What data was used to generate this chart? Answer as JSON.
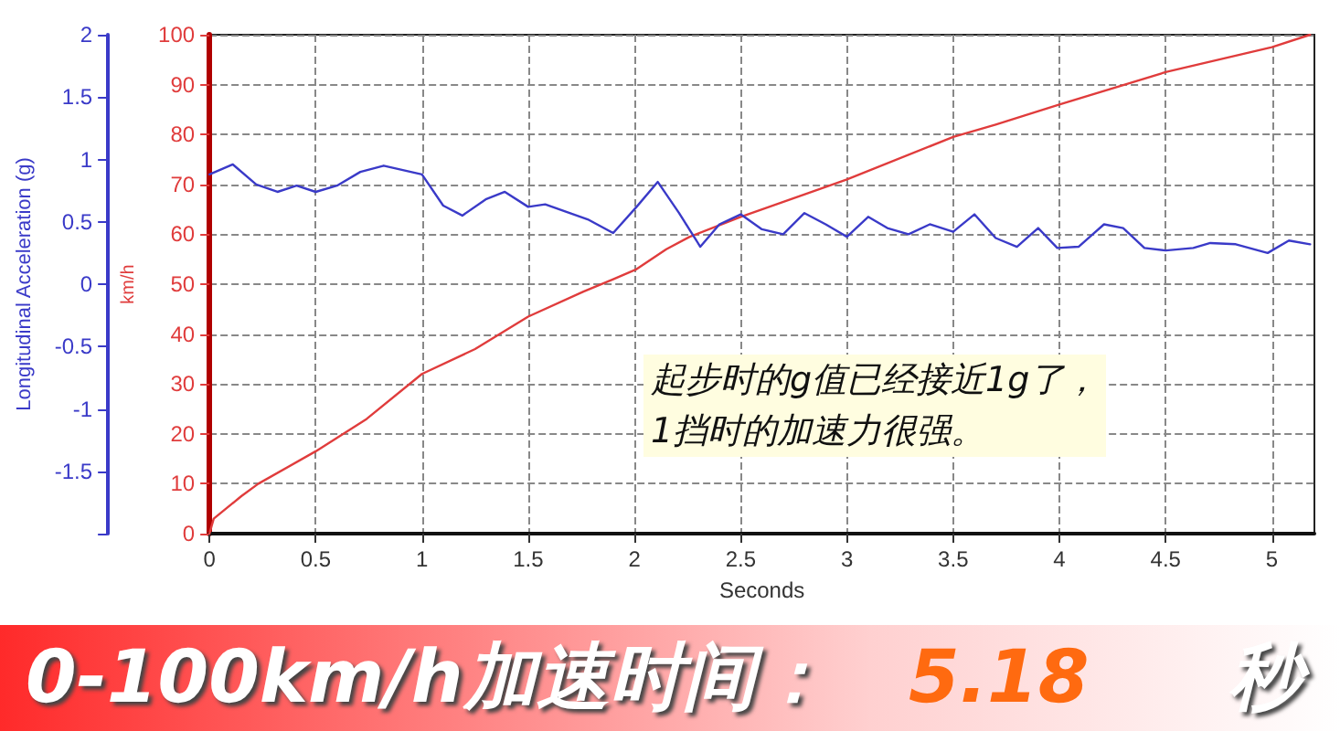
{
  "chart_data": {
    "type": "line",
    "xlabel": "Seconds",
    "ylabel": "km/h",
    "y2label": "Longitudinal Acceleration (g)",
    "xlim": [
      0,
      5.2
    ],
    "xticks": [
      0,
      0.5,
      1,
      1.5,
      2,
      2.5,
      3,
      3.5,
      4,
      4.5,
      5
    ],
    "ylim": [
      0,
      100
    ],
    "yticks": [
      0,
      10,
      20,
      30,
      40,
      50,
      60,
      70,
      80,
      90,
      100
    ],
    "y2lim": [
      -2,
      2
    ],
    "y2ticks": [
      {
        "value": -2,
        "label": null
      },
      -1.5,
      -1,
      -0.5,
      0,
      0.5,
      1,
      1.5,
      2
    ],
    "grid": true,
    "marker": "none",
    "line_style": "solid",
    "series": [
      {
        "color": "#e03c3c",
        "x": [
          0,
          0.02,
          0.15,
          0.23,
          0.5,
          0.74,
          1,
          1.25,
          1.5,
          1.76,
          1.9,
          2.01,
          2.15,
          2.26,
          2.5,
          3,
          3.5,
          3.7,
          4,
          4.5,
          5,
          5.18
        ],
        "values": [
          0,
          3,
          7.5,
          10,
          16.5,
          23,
          32,
          37,
          43.5,
          48.5,
          51,
          53,
          57,
          59.5,
          63.5,
          71,
          79.5,
          82,
          86,
          92.5,
          97.5,
          100
        ]
      },
      {
        "color": "#3a3ac8",
        "axis": "y2",
        "x": [
          0,
          0.11,
          0.22,
          0.32,
          0.41,
          0.5,
          0.6,
          0.71,
          0.82,
          1,
          1.1,
          1.19,
          1.3,
          1.39,
          1.5,
          1.58,
          1.78,
          1.9,
          2.01,
          2.11,
          2.21,
          2.31,
          2.4,
          2.5,
          2.6,
          2.7,
          2.8,
          2.9,
          3,
          3.1,
          3.19,
          3.29,
          3.39,
          3.5,
          3.6,
          3.7,
          3.8,
          3.9,
          3.99,
          4.09,
          4.21,
          4.3,
          4.4,
          4.5,
          4.63,
          4.71,
          4.83,
          4.98,
          5.08,
          5.18
        ],
        "values": [
          0.88,
          0.96,
          0.8,
          0.74,
          0.79,
          0.74,
          0.79,
          0.9,
          0.95,
          0.88,
          0.63,
          0.55,
          0.68,
          0.74,
          0.62,
          0.64,
          0.52,
          0.41,
          0.62,
          0.82,
          0.57,
          0.3,
          0.48,
          0.56,
          0.44,
          0.4,
          0.57,
          0.48,
          0.38,
          0.54,
          0.45,
          0.4,
          0.48,
          0.42,
          0.56,
          0.37,
          0.3,
          0.45,
          0.29,
          0.3,
          0.48,
          0.45,
          0.29,
          0.27,
          0.29,
          0.33,
          0.32,
          0.25,
          0.35,
          0.32
        ]
      }
    ],
    "annotations": [
      "起步时的g值已经接近1g了，\n1挡时的加速力很强。",
      "0-100km/h加速时间：",
      "5.18",
      "秒"
    ]
  }
}
